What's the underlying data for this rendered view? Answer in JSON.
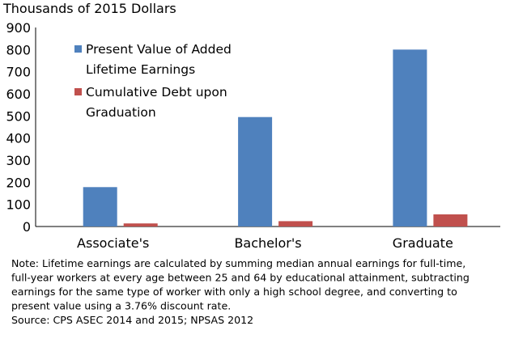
{
  "chart_data": {
    "type": "bar",
    "y_unit_label": "Thousands of 2015 Dollars",
    "categories": [
      "Associate's",
      "Bachelor's",
      "Graduate"
    ],
    "series": [
      {
        "name_lines": [
          "Present Value of Added",
          "Lifetime Earnings"
        ],
        "color": "#4F81BD",
        "values": [
          178,
          495,
          800
        ]
      },
      {
        "name_lines": [
          "Cumulative Debt upon",
          "Graduation"
        ],
        "color": "#C0504D",
        "values": [
          14,
          24,
          55
        ]
      }
    ],
    "ylim": [
      0,
      900
    ],
    "y_ticks": [
      "0",
      "100",
      "200",
      "300",
      "400",
      "500",
      "600",
      "700",
      "800",
      "900"
    ],
    "grid": false,
    "legend_position": "top-left"
  },
  "footnote": {
    "lines": [
      "Note: Lifetime earnings are calculated by summing median annual earnings for full-time,",
      "full-year workers at every age between 25 and 64 by educational attainment, subtracting",
      "earnings for the same type of worker with only a high school degree, and converting to",
      "present value using a 3.76% discount rate."
    ],
    "source": "Source: CPS ASEC 2014 and 2015; NPSAS 2012"
  }
}
